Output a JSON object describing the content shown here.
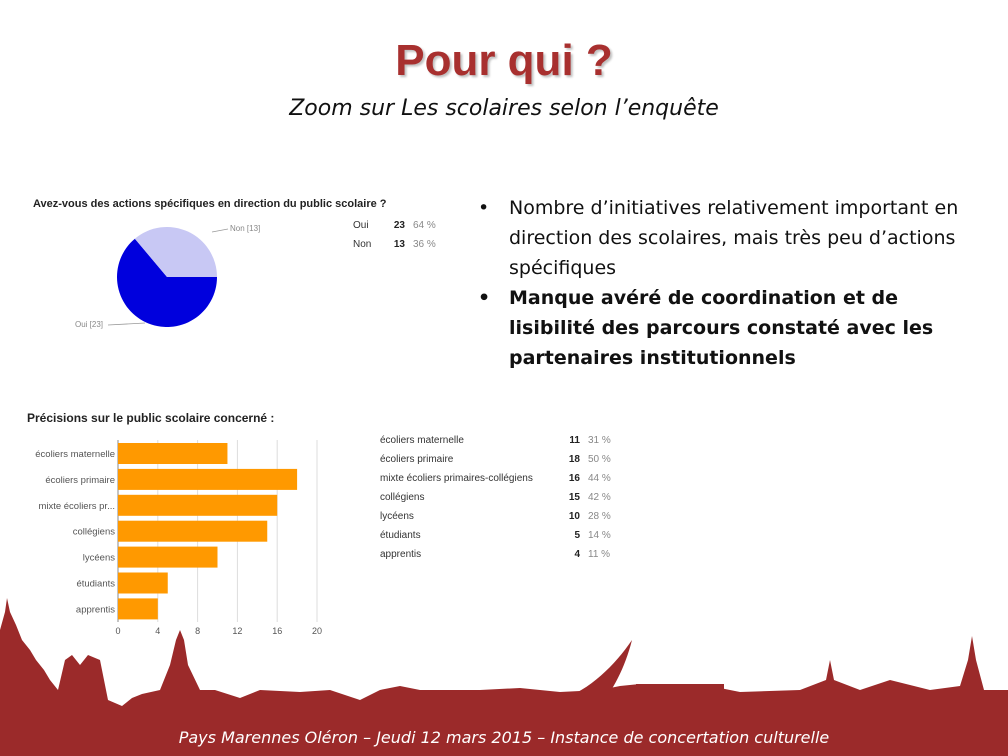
{
  "slide": {
    "title": "Pour qui ?",
    "subtitle": "Zoom sur Les scolaires selon l’enquête",
    "footer": "Pays Marennes Oléron – Jeudi 12 mars 2015 – Instance de concertation culturelle"
  },
  "colors": {
    "title": "#a8302f",
    "footer_band": "#9b2a2a",
    "pie_oui": "#0000dd",
    "pie_non": "#c8c8f4",
    "bar": "#ff9900"
  },
  "bullets": [
    {
      "text": "Nombre d’initiatives relativement important en direction des scolaires, mais très peu d’actions spécifiques",
      "bold": false
    },
    {
      "text": "Manque avéré de coordination et de lisibilité des parcours constaté avec les partenaires institutionnels",
      "bold": true
    }
  ],
  "chart_data": [
    {
      "type": "pie",
      "title": "Avez-vous des actions spécifiques en direction du public scolaire ?",
      "categories": [
        "Oui",
        "Non"
      ],
      "values": [
        23,
        13
      ],
      "percent_labels": [
        "64 %",
        "36 %"
      ],
      "slice_labels": [
        "Oui [23]",
        "Non [13]"
      ]
    },
    {
      "type": "bar",
      "orientation": "horizontal",
      "title": "Précisions sur le public scolaire concerné :",
      "categories": [
        "écoliers maternelle",
        "écoliers primaire",
        "mixte écoliers primaires-collégiens",
        "collégiens",
        "lycéens",
        "étudiants",
        "apprentis"
      ],
      "axis_labels": [
        "écoliers maternelle",
        "écoliers primaire",
        "mixte écoliers pr...",
        "collégiens",
        "lycéens",
        "étudiants",
        "apprentis"
      ],
      "values": [
        11,
        18,
        16,
        15,
        10,
        5,
        4
      ],
      "percent_labels": [
        "31 %",
        "50 %",
        "44 %",
        "42 %",
        "28 %",
        "14 %",
        "11 %"
      ],
      "xlim": [
        0,
        20
      ],
      "xticks": [
        0,
        4,
        8,
        12,
        16,
        20
      ]
    }
  ]
}
